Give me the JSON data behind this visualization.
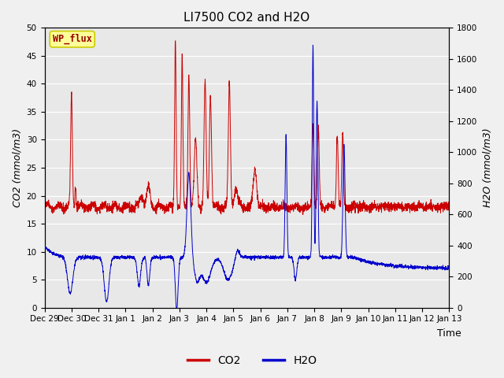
{
  "title": "LI7500 CO2 and H2O",
  "xlabel": "Time",
  "ylabel_left": "CO2 (mmol/m3)",
  "ylabel_right": "H2O (mmol/m3)",
  "ylim_left": [
    0,
    50
  ],
  "ylim_right": [
    0,
    1800
  ],
  "xtick_labels": [
    "Dec 29",
    "Dec 30",
    "Dec 31",
    "Jan 1",
    "Jan 2",
    "Jan 3",
    "Jan 4",
    "Jan 5",
    "Jan 6",
    "Jan 7",
    "Jan 8",
    "Jan 9",
    "Jan 10",
    "Jan 11",
    "Jan 12",
    "Jan 13"
  ],
  "co2_color": "#cc0000",
  "h2o_color": "#0000cc",
  "plot_bg": "#e8e8e8",
  "fig_bg": "#f0f0f0",
  "grid_color": "#ffffff",
  "annotation_text": "WP_flux",
  "annotation_color": "#990000",
  "annotation_bg": "#ffff99",
  "annotation_edge": "#cccc00",
  "legend_co2": "CO2",
  "legend_h2o": "H2O",
  "title_fontsize": 11,
  "axis_fontsize": 9,
  "tick_fontsize": 7.5,
  "legend_fontsize": 10
}
